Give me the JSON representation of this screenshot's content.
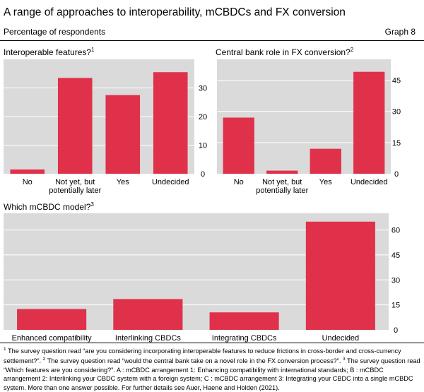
{
  "header": {
    "title": "A range of approaches to interoperability, mCBDCs and FX conversion",
    "subtitle": "Percentage of respondents",
    "graph_number": "Graph 8"
  },
  "colors": {
    "bar": "#e0314b",
    "plot_bg": "#dadada"
  },
  "chart_data": [
    {
      "type": "bar",
      "title": "Interoperable features?",
      "footnote_ref": "1",
      "categories": [
        "No",
        "Not yet, but\npotentially later",
        "Yes",
        "Undecided"
      ],
      "values": [
        1.5,
        33.5,
        27.5,
        35.5
      ],
      "ylim": [
        0,
        40
      ],
      "yticks": [
        0,
        10,
        20,
        30
      ],
      "y_axis_position": "right",
      "grid": true
    },
    {
      "type": "bar",
      "title": "Central bank role in FX conversion?",
      "footnote_ref": "2",
      "categories": [
        "No",
        "Not yet, but\npotentially later",
        "Yes",
        "Undecided"
      ],
      "values": [
        27,
        1.5,
        12,
        49
      ],
      "ylim": [
        0,
        55
      ],
      "yticks": [
        0,
        15,
        30,
        45
      ],
      "y_axis_position": "right",
      "grid": true
    },
    {
      "type": "bar",
      "title": "Which mCBDC model?",
      "footnote_ref": "3",
      "categories": [
        "Enhanced compatibility",
        "Interlinking CBDCs",
        "Integrating CBDCs",
        "Undecided"
      ],
      "values": [
        12.5,
        18.5,
        10.5,
        65
      ],
      "ylim": [
        0,
        70
      ],
      "yticks": [
        0,
        15,
        30,
        45,
        60
      ],
      "y_axis_position": "right",
      "grid": true
    }
  ],
  "footnotes": [
    {
      "ref": "1",
      "text": "The survey question read “are you considering incorporating interoperable features to reduce frictions in cross-border and cross-currency settlement?”."
    },
    {
      "ref": "2",
      "text": "The survey question read “would the central bank take on a novel role in the FX conversion process?”."
    },
    {
      "ref": "3",
      "text": "The survey question read “Which features are you considering?”. A : mCBDC arrangement 1: Enhancing compatibility with international standards; B : mCBDC arrangement 2: Interlinking your CBDC system with a foreign system; C : mCBDC arrangement 3: Integrating your CBDC into a single mCBDC system. More than one answer possible. For further details see Auer, Haene and Holden (2021)."
    }
  ]
}
